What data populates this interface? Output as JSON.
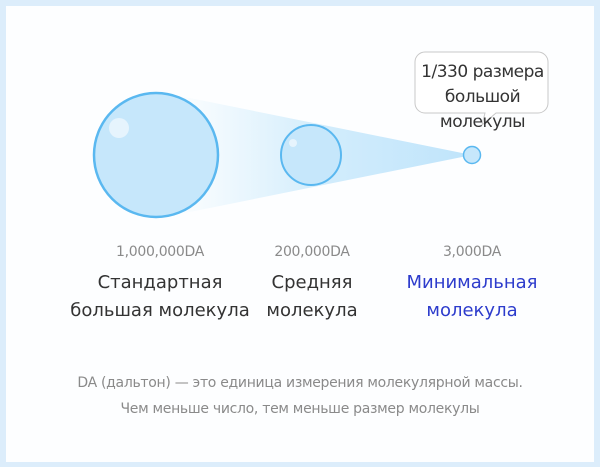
{
  "callout": {
    "line1": "1/330 размера",
    "line2": "большой молекулы"
  },
  "molecules": [
    {
      "mass": "1,000,000DA",
      "name_line1": "Стандартная",
      "name_line2": "большая молекула"
    },
    {
      "mass": "200,000DA",
      "name_line1": "Средняя",
      "name_line2": "молекула"
    },
    {
      "mass": "3,000DA",
      "name_line1": "Минимальная",
      "name_line2": "молекула"
    }
  ],
  "footer": {
    "line1": "DA (дальтон) — это единица измерения молекулярной массы.",
    "line2": "Чем меньше число, тем меньше размер молекулы"
  },
  "colors": {
    "circle_fill": "#c6e7fb",
    "circle_stroke": "#5ab8f0",
    "highlight_text": "#2d3ccc",
    "frame": "#dcedfb"
  }
}
